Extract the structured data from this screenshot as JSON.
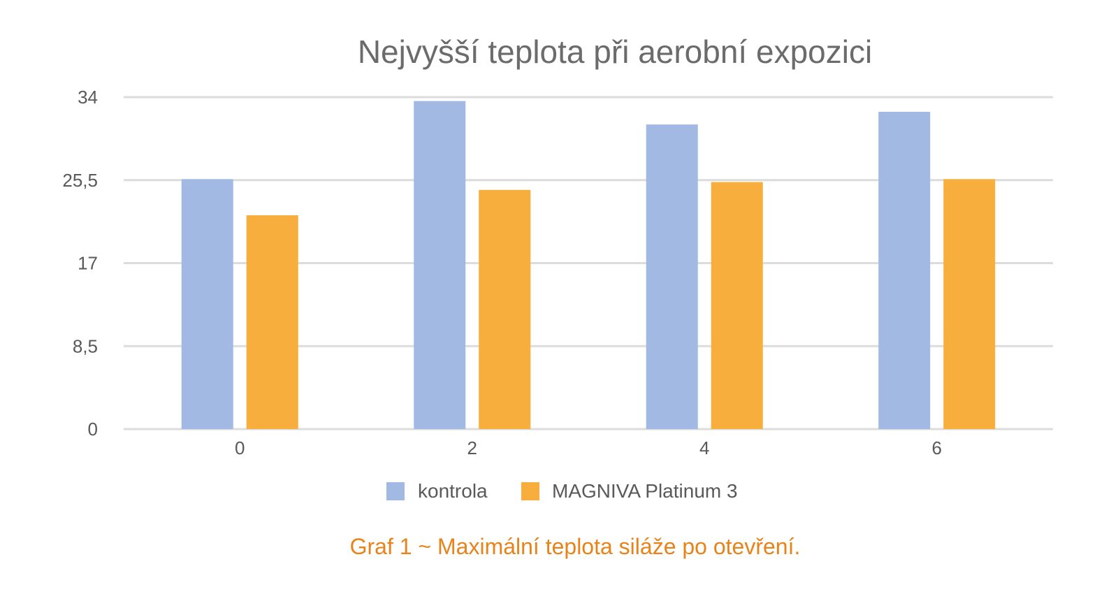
{
  "chart_data": {
    "type": "bar",
    "title": "Nejvyšší teplota při aerobní expozici",
    "categories": [
      "0",
      "2",
      "4",
      "6"
    ],
    "series": [
      {
        "name": "kontrola",
        "values": [
          25.6,
          33.6,
          31.2,
          32.5
        ],
        "color": "#a2bae3"
      },
      {
        "name": "MAGNIVA Platinum 3",
        "values": [
          21.9,
          24.5,
          25.3,
          25.6
        ],
        "color": "#f8ae3d"
      }
    ],
    "yticks": [
      "0",
      "8,5",
      "17",
      "25,5",
      "34"
    ],
    "ytick_values": [
      0,
      8.5,
      17,
      25.5,
      34
    ],
    "ylim": [
      0,
      34
    ],
    "xlabel": "",
    "ylabel": "",
    "grid": true,
    "legend": "bottom-center",
    "gridline_color": "#dcdcdc"
  },
  "caption": "Graf 1 ~ Maximální teplota siláže po otevření."
}
